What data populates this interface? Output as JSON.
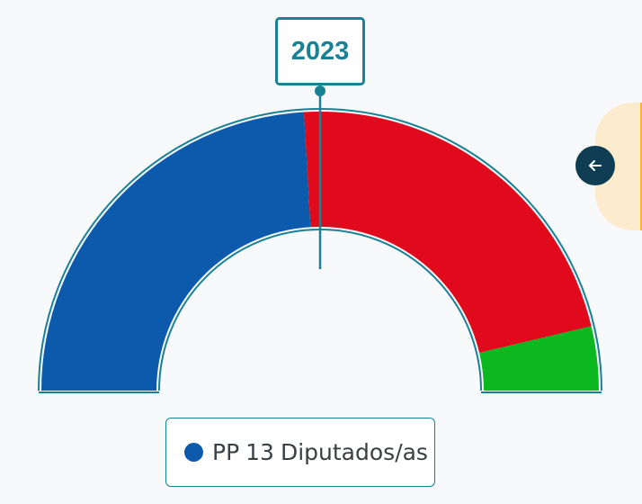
{
  "chart_data": {
    "type": "pie",
    "subtype": "semicircle-parliament",
    "year": "2023",
    "total_seats": 27,
    "series": [
      {
        "name": "PP",
        "value": 13,
        "color": "#0b5aab"
      },
      {
        "value": 12,
        "color": "#e00a1c"
      },
      {
        "value": 2,
        "color": "#0cb81f"
      }
    ],
    "legend": {
      "party": "PP",
      "seats": "13",
      "unit": "Diputados/as",
      "placement": "bottom"
    }
  },
  "colors": {
    "accent": "#1a8194",
    "panel": "#fcebcd",
    "panel_stripe": "#f6b33e",
    "button": "#0f3d54"
  },
  "side_panel": {
    "back_icon": "arrow-left-icon"
  }
}
